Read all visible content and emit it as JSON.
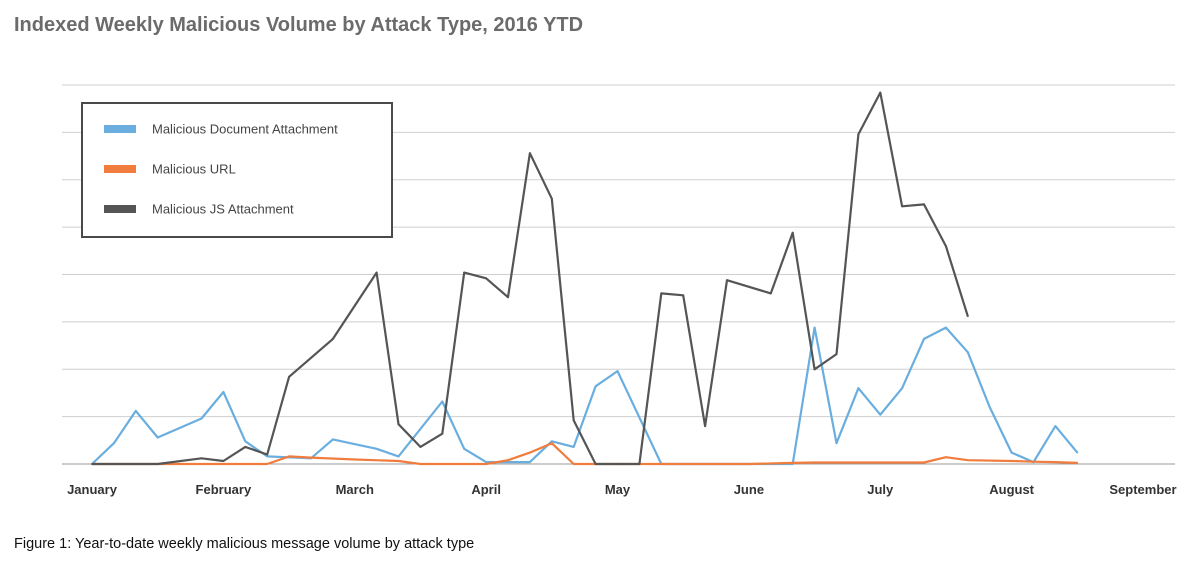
{
  "chart_data": {
    "type": "line",
    "title": "Indexed Weekly Malicious Volume by Attack Type, 2016 YTD",
    "xlabel": "",
    "ylabel": "",
    "x_tick_labels": [
      "January",
      "February",
      "March",
      "April",
      "May",
      "June",
      "July",
      "August",
      "September"
    ],
    "x_tick_positions": [
      0,
      6,
      12,
      18,
      24,
      30,
      36,
      42,
      48
    ],
    "xlim": [
      0,
      48
    ],
    "ylim": [
      0,
      100
    ],
    "y_gridlines": [
      0,
      12.5,
      25,
      37.5,
      50,
      62.5,
      75,
      87.5,
      100
    ],
    "grid": true,
    "legend_position": "top-left",
    "series": [
      {
        "name": "Malicious Document Attachment",
        "color": "#6aaee0",
        "points": [
          [
            0,
            0
          ],
          [
            1,
            5.5
          ],
          [
            2,
            14
          ],
          [
            3,
            7
          ],
          [
            5,
            12
          ],
          [
            6,
            19
          ],
          [
            7,
            6
          ],
          [
            8,
            2
          ],
          [
            10,
            1.5
          ],
          [
            11,
            6.5
          ],
          [
            13,
            4
          ],
          [
            14,
            2
          ],
          [
            16,
            16.5
          ],
          [
            17,
            4
          ],
          [
            18,
            0.5
          ],
          [
            20,
            0.5
          ],
          [
            21,
            6
          ],
          [
            22,
            4.5
          ],
          [
            23,
            20.5
          ],
          [
            24,
            24.5
          ],
          [
            26,
            0
          ],
          [
            28,
            0
          ],
          [
            30,
            0
          ],
          [
            31,
            0
          ],
          [
            32,
            0
          ],
          [
            33,
            36
          ],
          [
            34,
            5.5
          ],
          [
            35,
            20
          ],
          [
            36,
            13
          ],
          [
            37,
            20
          ],
          [
            38,
            33
          ],
          [
            39,
            36
          ],
          [
            40,
            29.5
          ],
          [
            41,
            15
          ],
          [
            42,
            3
          ],
          [
            43,
            0.5
          ],
          [
            44,
            10
          ],
          [
            45,
            3
          ]
        ]
      },
      {
        "name": "Malicious URL",
        "color": "#f07c3d",
        "points": [
          [
            0,
            0
          ],
          [
            2,
            0
          ],
          [
            4,
            0
          ],
          [
            5,
            0
          ],
          [
            6,
            0
          ],
          [
            8,
            0
          ],
          [
            9,
            2
          ],
          [
            10,
            1.7
          ],
          [
            12,
            1.2
          ],
          [
            14,
            0.8
          ],
          [
            15,
            0
          ],
          [
            17,
            0
          ],
          [
            18,
            0
          ],
          [
            19,
            1
          ],
          [
            20,
            3
          ],
          [
            21,
            5.5
          ],
          [
            22,
            0
          ],
          [
            24,
            0
          ],
          [
            26,
            0
          ],
          [
            28,
            0
          ],
          [
            30,
            0
          ],
          [
            32,
            0.3
          ],
          [
            33,
            0.4
          ],
          [
            34,
            0.4
          ],
          [
            36,
            0.4
          ],
          [
            38,
            0.4
          ],
          [
            39,
            1.8
          ],
          [
            40,
            1
          ],
          [
            42,
            0.8
          ],
          [
            43,
            0.6
          ],
          [
            44,
            0.5
          ],
          [
            45,
            0.3
          ]
        ]
      },
      {
        "name": "Malicious JS Attachment",
        "color": "#555555",
        "points": [
          [
            0,
            0
          ],
          [
            1,
            0
          ],
          [
            3,
            0
          ],
          [
            5,
            1.5
          ],
          [
            6,
            0.8
          ],
          [
            7,
            4.5
          ],
          [
            8,
            2.5
          ],
          [
            9,
            23
          ],
          [
            11,
            33
          ],
          [
            13,
            50.5
          ],
          [
            14,
            10.5
          ],
          [
            15,
            4.5
          ],
          [
            16,
            8
          ],
          [
            17,
            50.5
          ],
          [
            18,
            49
          ],
          [
            19,
            44
          ],
          [
            20,
            82
          ],
          [
            21,
            70
          ],
          [
            22,
            11.5
          ],
          [
            23,
            0
          ],
          [
            24,
            0
          ],
          [
            25,
            0
          ],
          [
            26,
            45
          ],
          [
            27,
            44.5
          ],
          [
            28,
            10
          ],
          [
            29,
            48.5
          ],
          [
            31,
            45
          ],
          [
            32,
            61
          ],
          [
            33,
            25
          ],
          [
            34,
            29
          ],
          [
            35,
            87
          ],
          [
            36,
            98
          ],
          [
            37,
            68
          ],
          [
            38,
            68.5
          ],
          [
            39,
            57.5
          ],
          [
            40,
            39
          ]
        ]
      }
    ]
  },
  "caption": "Figure 1: Year-to-date weekly malicious message volume by attack type"
}
